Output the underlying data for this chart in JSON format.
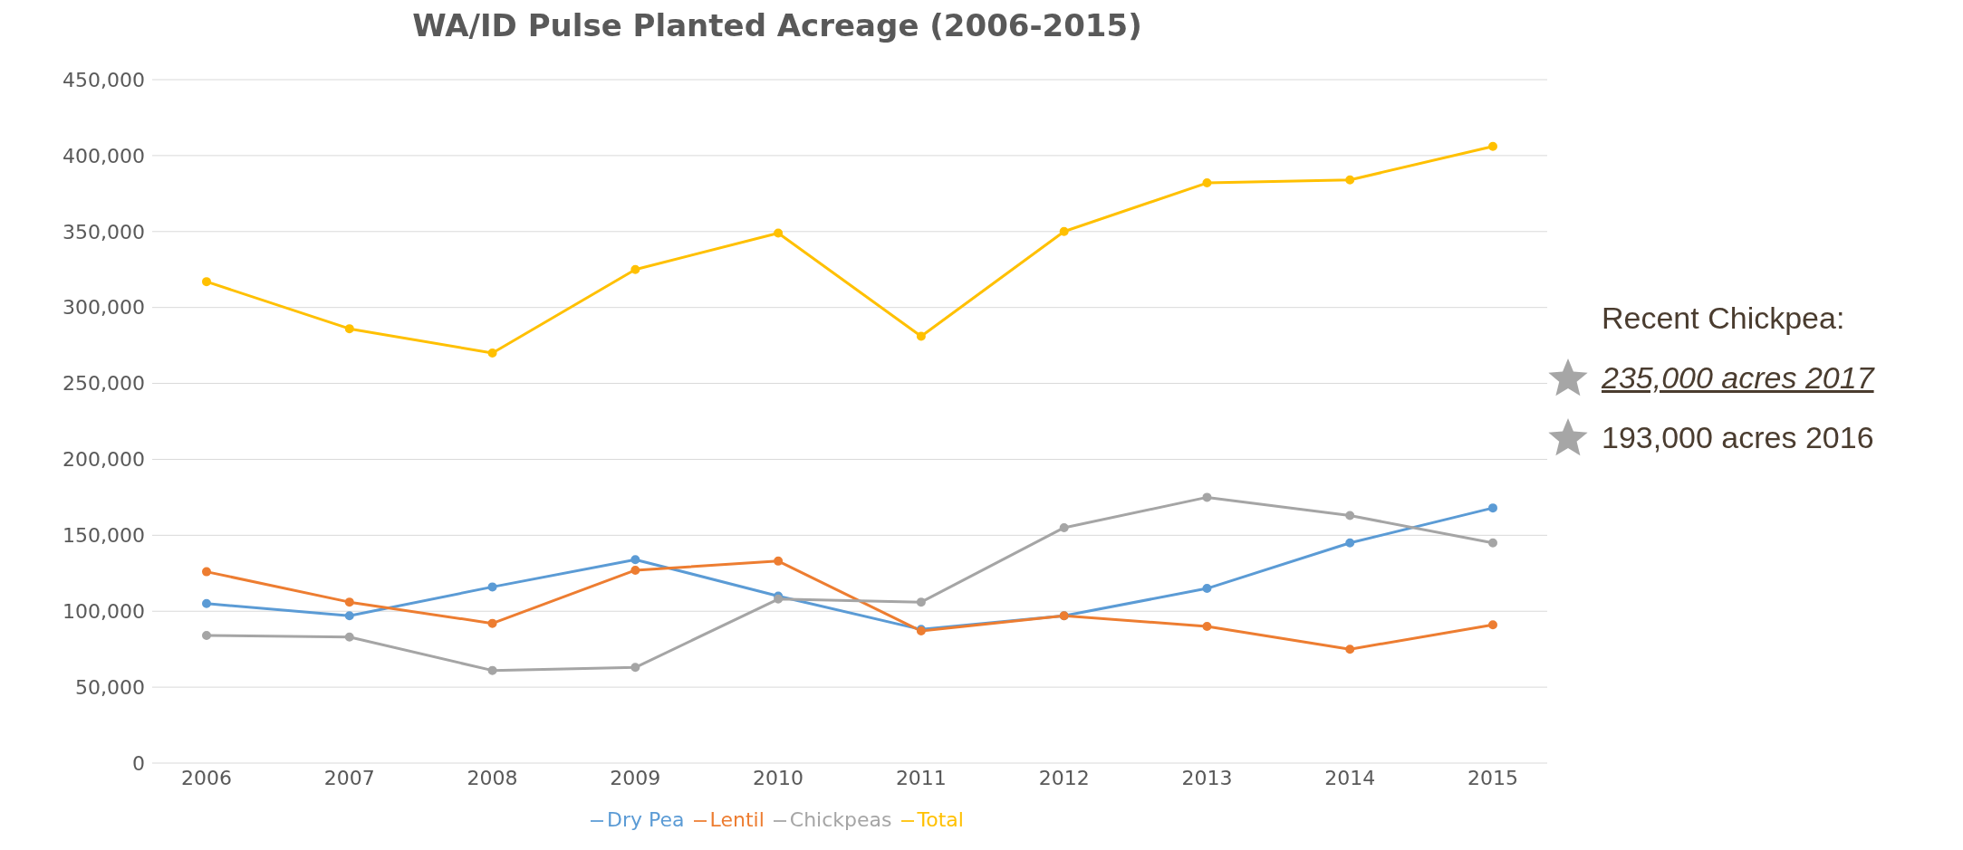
{
  "chart_data": {
    "type": "line",
    "title": "WA/ID Pulse Planted Acreage (2006-2015)",
    "categories": [
      "2006",
      "2007",
      "2008",
      "2009",
      "2010",
      "2011",
      "2012",
      "2013",
      "2014",
      "2015"
    ],
    "series": [
      {
        "name": "Dry Pea",
        "color": "#5b9bd5",
        "values": [
          105000,
          97000,
          116000,
          134000,
          110000,
          88000,
          97000,
          115000,
          145000,
          168000
        ]
      },
      {
        "name": "Lentil",
        "color": "#ed7d31",
        "values": [
          126000,
          106000,
          92000,
          127000,
          133000,
          87000,
          97000,
          90000,
          75000,
          91000
        ]
      },
      {
        "name": "Chickpeas",
        "color": "#a5a5a5",
        "values": [
          84000,
          83000,
          61000,
          63000,
          108000,
          106000,
          155000,
          175000,
          163000,
          145000
        ]
      },
      {
        "name": "Total",
        "color": "#ffc000",
        "values": [
          317000,
          286000,
          270000,
          325000,
          349000,
          281000,
          350000,
          382000,
          384000,
          406000
        ]
      }
    ],
    "ylim": [
      0,
      450000
    ],
    "yticks": [
      0,
      {
        "value": 50000,
        "label": "50,000"
      },
      {
        "value": 100000,
        "label": "100,000"
      },
      {
        "value": 150000,
        "label": "150,000"
      },
      {
        "value": 200000,
        "label": "200,000"
      },
      {
        "value": 250000,
        "label": "250,000"
      },
      {
        "value": 300000,
        "label": "300,000"
      },
      {
        "value": 350000,
        "label": "350,000"
      },
      {
        "value": 400000,
        "label": "400,000"
      },
      {
        "value": 450000,
        "label": "450,000"
      }
    ],
    "grid": "y",
    "legend": "bottom",
    "marker": "circle",
    "line_style": "solid",
    "annotations": [
      "Recent Chickpea:",
      "235,000 acres 2017",
      "193,000 acres 2016"
    ]
  }
}
